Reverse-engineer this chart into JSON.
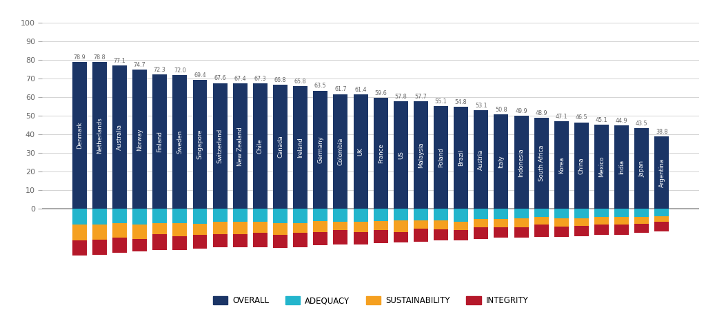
{
  "countries": [
    "Denmark",
    "Netherlands",
    "Australia",
    "Norway",
    "Finland",
    "Sweden",
    "Singapore",
    "Switzerland",
    "New Zealand",
    "Chile",
    "Canada",
    "Ireland",
    "Germany",
    "Colombia",
    "UK",
    "France",
    "US",
    "Malaysia",
    "Poland",
    "Brazil",
    "Austria",
    "Italy",
    "Indonesia",
    "South Africa",
    "Korea",
    "China",
    "Mexico",
    "India",
    "Japan",
    "Argentina"
  ],
  "overall": [
    78.9,
    78.8,
    77.1,
    74.7,
    72.3,
    72.0,
    69.4,
    67.6,
    67.4,
    67.3,
    66.8,
    65.8,
    63.5,
    61.7,
    61.4,
    59.6,
    57.8,
    57.7,
    55.1,
    54.8,
    53.1,
    50.8,
    49.9,
    48.9,
    47.1,
    46.5,
    45.1,
    44.9,
    43.5,
    38.8
  ],
  "adequacy_neg": [
    8.5,
    8.5,
    7.5,
    8.5,
    7.5,
    7.5,
    8.0,
    7.0,
    7.0,
    7.0,
    7.5,
    7.5,
    6.5,
    7.0,
    7.0,
    6.5,
    6.0,
    6.0,
    6.0,
    7.0,
    5.5,
    5.5,
    5.0,
    4.5,
    5.0,
    5.0,
    4.5,
    4.5,
    4.5,
    4.0
  ],
  "sustainability_neg": [
    8.5,
    8.0,
    8.0,
    7.5,
    6.0,
    7.0,
    6.0,
    6.5,
    6.5,
    6.0,
    6.5,
    5.5,
    6.0,
    4.5,
    5.5,
    5.0,
    6.5,
    4.5,
    5.0,
    4.5,
    4.5,
    4.5,
    5.0,
    4.0,
    4.5,
    4.0,
    4.0,
    4.0,
    3.5,
    3.0
  ],
  "integrity_neg": [
    8.0,
    8.0,
    8.0,
    7.0,
    8.5,
    7.5,
    7.5,
    7.0,
    7.0,
    7.5,
    7.0,
    7.5,
    7.0,
    7.5,
    6.5,
    7.0,
    5.5,
    7.0,
    6.0,
    5.5,
    6.0,
    5.5,
    5.5,
    6.5,
    5.5,
    5.5,
    5.5,
    5.5,
    5.0,
    5.0
  ],
  "color_overall": "#1b3566",
  "color_adequacy": "#23b5cc",
  "color_sustainability": "#f5a020",
  "color_integrity": "#b5182a",
  "bg_color": "#ffffff",
  "ylim_min": -37,
  "ylim_max": 107,
  "yticks": [
    0,
    10,
    20,
    30,
    40,
    50,
    60,
    70,
    80,
    90,
    100
  ]
}
